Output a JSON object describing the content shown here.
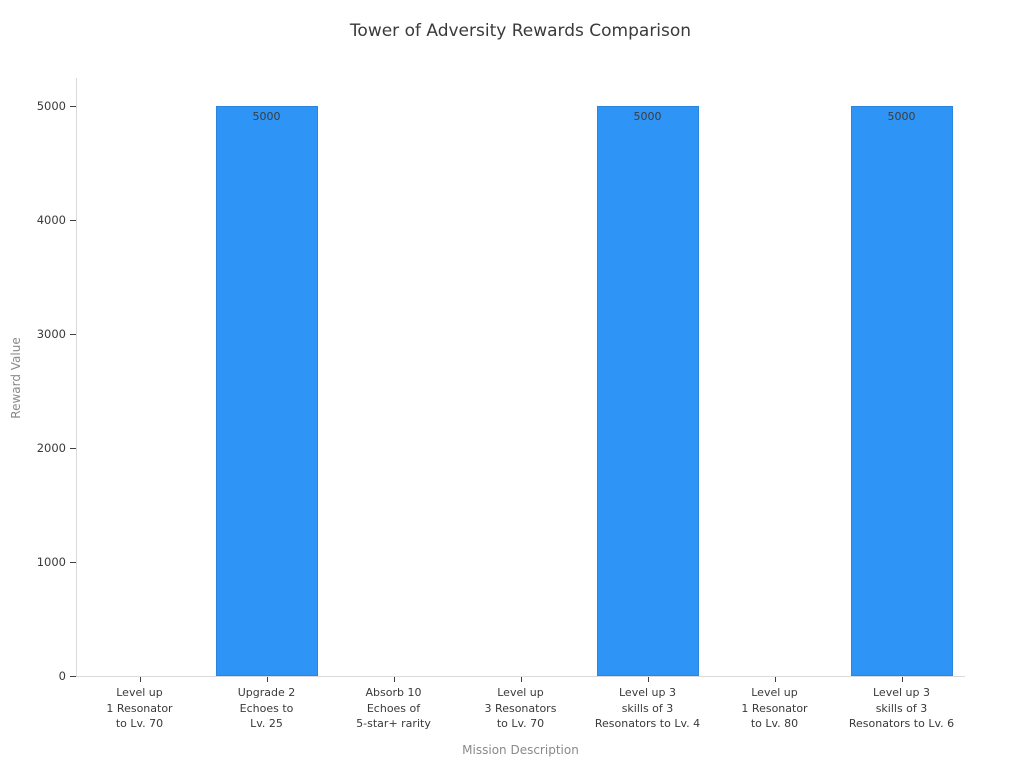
{
  "chart_data": {
    "type": "bar",
    "title": "Tower of Adversity Rewards Comparison",
    "xlabel": "Mission Description",
    "ylabel": "Reward Value",
    "categories": [
      [
        "Level up",
        "1 Resonator",
        "to Lv. 70"
      ],
      [
        "Upgrade 2",
        "Echoes to",
        "Lv. 25"
      ],
      [
        "Absorb 10",
        "Echoes of",
        "5-star+ rarity"
      ],
      [
        "Level up",
        "3 Resonators",
        "to Lv. 70"
      ],
      [
        "Level up 3",
        "skills of 3",
        "Resonators to Lv. 4"
      ],
      [
        "Level up",
        "1 Resonator",
        "to Lv. 80"
      ],
      [
        "Level up 3",
        "skills of 3",
        "Resonators to Lv. 6"
      ]
    ],
    "values": [
      0,
      5000,
      0,
      0,
      5000,
      0,
      5000
    ],
    "bar_value_labels": [
      "",
      "5000",
      "",
      "",
      "5000",
      "",
      "5000"
    ],
    "yticks": [
      0,
      1000,
      2000,
      3000,
      4000,
      5000
    ],
    "ylim": [
      0,
      5250
    ],
    "grid": false,
    "legend": "none",
    "bar_color": "#2e94f5",
    "bar_edge_color": "#2a86dd"
  }
}
